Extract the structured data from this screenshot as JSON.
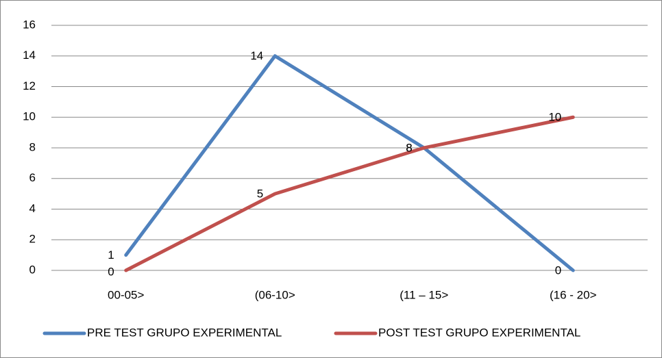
{
  "chart_data": {
    "type": "line",
    "categories": [
      "00-05>",
      "(06-10>",
      "(11 – 15>",
      "(16 - 20>"
    ],
    "series": [
      {
        "name": "PRE TEST GRUPO EXPERIMENTAL",
        "color": "#4f81bd",
        "values": [
          1,
          14,
          8,
          0
        ]
      },
      {
        "name": "POST TEST GRUPO EXPERIMENTAL",
        "color": "#c0504d",
        "values": [
          0,
          5,
          8,
          10
        ]
      }
    ],
    "ylim": [
      0,
      16
    ],
    "yticks": [
      0,
      2,
      4,
      6,
      8,
      10,
      12,
      14,
      16
    ],
    "grid": true,
    "legend": "bottom"
  }
}
